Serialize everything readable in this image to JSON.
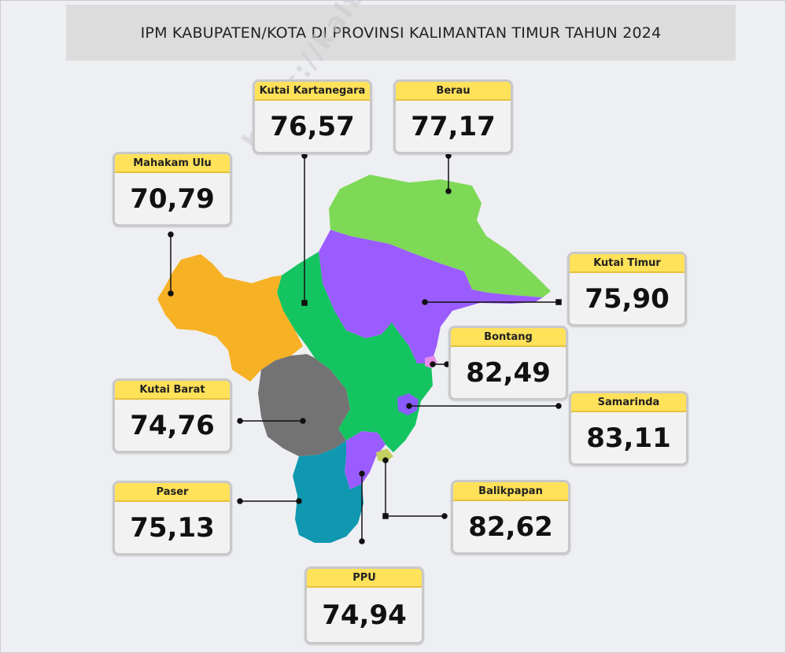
{
  "title": "IPM KABUPATEN/KOTA DI PROVINSI KALIMANTAN TIMUR TAHUN 2024",
  "watermark": "https://kaltim.bps.go.",
  "colors": {
    "card_label_bg": "#ffe15a",
    "mahakam_ulu": "#f7b125",
    "kutai_kartanegara": "#14c461",
    "berau": "#7ed957",
    "kutai_timur": "#9b5cff",
    "bontang": "#e78ae8",
    "samarinda": "#8a5cff",
    "kutai_barat": "#737373",
    "paser": "#0f98b0",
    "ppu": "#9b5cff",
    "balikpapan": "#c4d160"
  },
  "regions": [
    {
      "key": "kukar",
      "name": "Kutai Kartanegara",
      "value": "76,57"
    },
    {
      "key": "berau",
      "name": "Berau",
      "value": "77,17"
    },
    {
      "key": "mahulu",
      "name": "Mahakam Ulu",
      "value": "70,79"
    },
    {
      "key": "kutim",
      "name": "Kutai Timur",
      "value": "75,90"
    },
    {
      "key": "bontang",
      "name": "Bontang",
      "value": "82,49"
    },
    {
      "key": "kubar",
      "name": "Kutai Barat",
      "value": "74,76"
    },
    {
      "key": "samarinda",
      "name": "Samarinda",
      "value": "83,11"
    },
    {
      "key": "paser",
      "name": "Paser",
      "value": "75,13"
    },
    {
      "key": "balikpapan",
      "name": "Balikpapan",
      "value": "82,62"
    },
    {
      "key": "ppu",
      "name": "PPU",
      "value": "74,94"
    }
  ]
}
